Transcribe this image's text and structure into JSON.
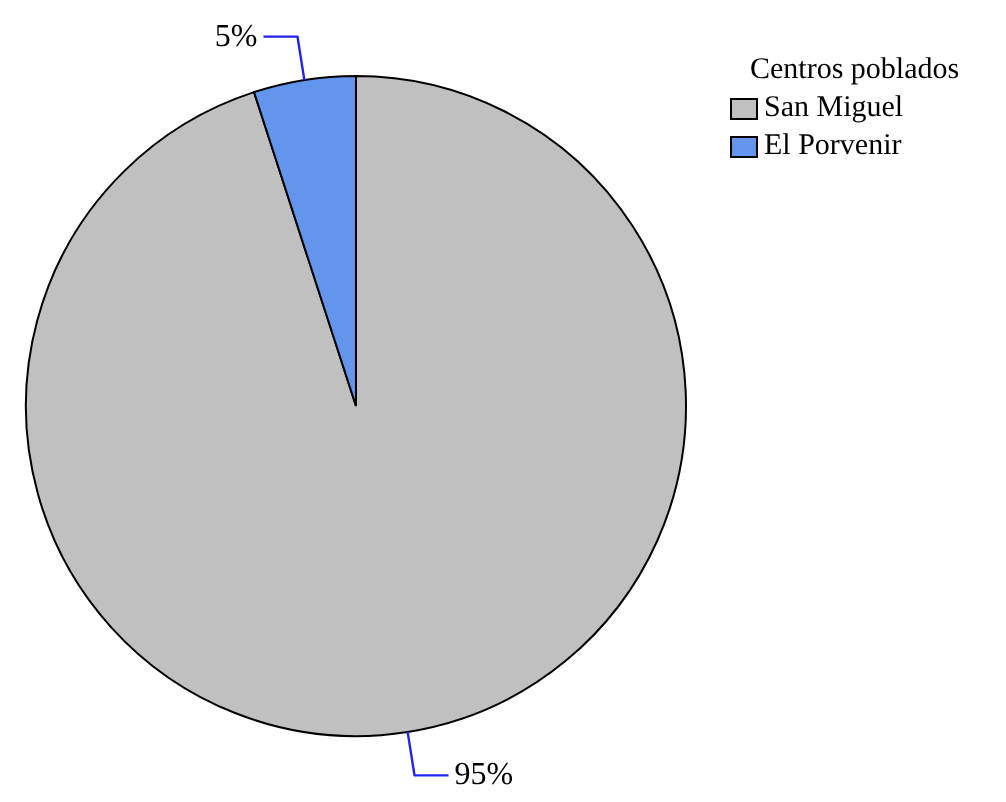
{
  "chart_data": {
    "type": "pie",
    "categories": [
      "San Miguel",
      "El Porvenir"
    ],
    "values": [
      95,
      5
    ],
    "colors": [
      "#c0c0c0",
      "#6495ed"
    ],
    "value_labels": [
      "95%",
      "5%"
    ],
    "legend_title": "Centros poblados",
    "legend": "top right"
  }
}
